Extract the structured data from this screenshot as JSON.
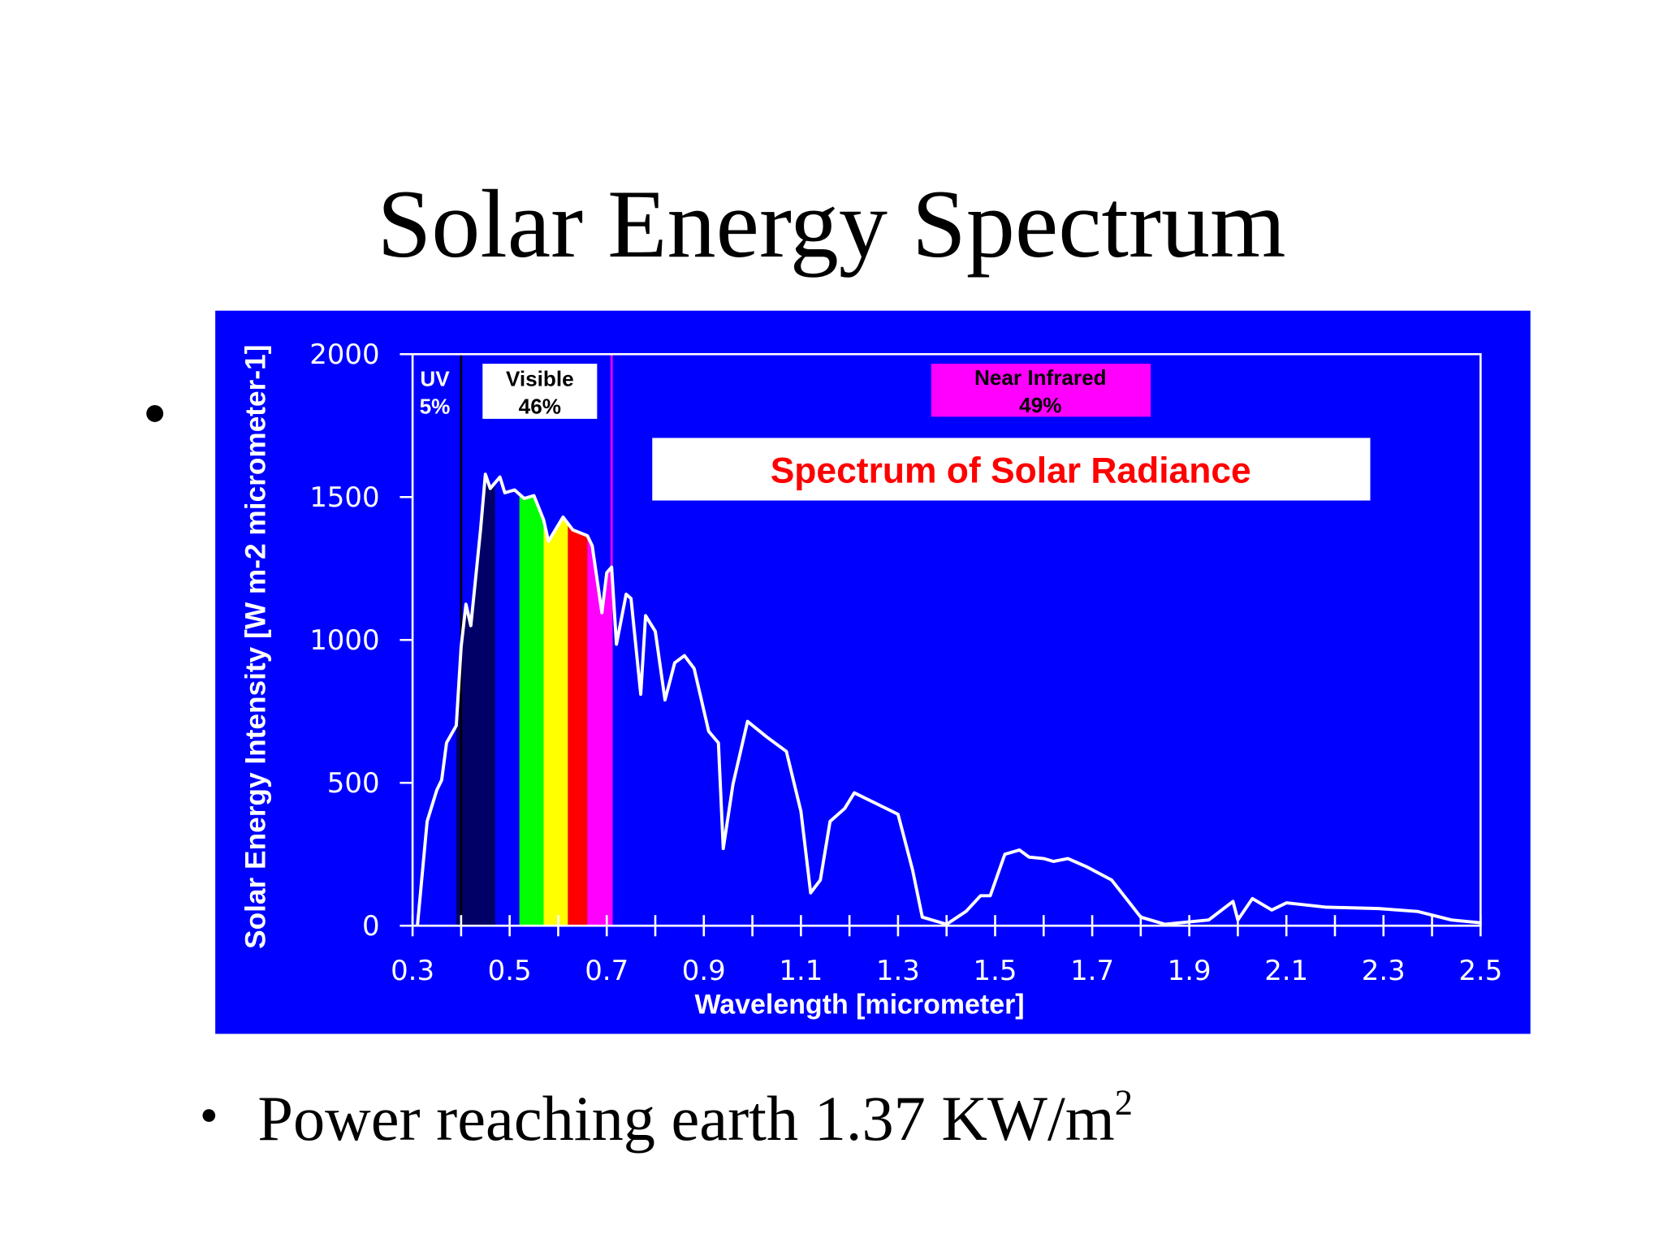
{
  "slide": {
    "title": "Solar Energy Spectrum",
    "bullet": {
      "text": "Power reaching earth 1.37 KW/m",
      "superscript": "2"
    }
  },
  "chart_data": {
    "type": "line",
    "title": "Spectrum of Solar Radiance",
    "x_label": "Wavelength [micrometer]",
    "y_label": "Solar Energy Intensity [W m-2 micrometer-1]",
    "x": [
      0.31,
      0.33,
      0.35,
      0.36,
      0.37,
      0.39,
      0.4,
      0.41,
      0.42,
      0.44,
      0.45,
      0.46,
      0.47,
      0.48,
      0.49,
      0.51,
      0.53,
      0.55,
      0.57,
      0.58,
      0.61,
      0.63,
      0.66,
      0.67,
      0.69,
      0.7,
      0.71,
      0.72,
      0.74,
      0.75,
      0.77,
      0.78,
      0.8,
      0.82,
      0.84,
      0.86,
      0.88,
      0.91,
      0.93,
      0.94,
      0.96,
      0.99,
      1.03,
      1.07,
      1.1,
      1.12,
      1.14,
      1.16,
      1.19,
      1.21,
      1.24,
      1.3,
      1.33,
      1.35,
      1.4,
      1.44,
      1.47,
      1.49,
      1.52,
      1.55,
      1.57,
      1.6,
      1.62,
      1.65,
      1.69,
      1.74,
      1.8,
      1.85,
      1.94,
      1.99,
      2.0,
      2.03,
      2.07,
      2.1,
      2.18,
      2.29,
      2.37,
      2.44,
      2.5
    ],
    "values": [
      0,
      365,
      475,
      510,
      640,
      700,
      975,
      1125,
      1050,
      1385,
      1580,
      1530,
      1550,
      1570,
      1515,
      1525,
      1495,
      1505,
      1420,
      1345,
      1430,
      1385,
      1365,
      1330,
      1095,
      1235,
      1255,
      985,
      1160,
      1145,
      810,
      1085,
      1030,
      790,
      920,
      945,
      900,
      680,
      640,
      270,
      495,
      715,
      660,
      610,
      400,
      115,
      160,
      365,
      410,
      465,
      440,
      390,
      195,
      30,
      5,
      50,
      105,
      105,
      250,
      265,
      240,
      235,
      225,
      235,
      205,
      160,
      30,
      5,
      20,
      85,
      20,
      95,
      55,
      80,
      65,
      60,
      50,
      20,
      10
    ],
    "color": "#ffffff",
    "xlim": [
      0.3,
      2.5
    ],
    "xticks": [
      0.3,
      0.5,
      0.7,
      0.9,
      1.1,
      1.3,
      1.5,
      1.7,
      1.9,
      2.1,
      2.3,
      2.5
    ],
    "minor_xticks": [
      0.4,
      0.6,
      0.8,
      1.0,
      1.2,
      1.4,
      1.6,
      1.8,
      2.0,
      2.2,
      2.4
    ],
    "ylim": [
      0,
      2000
    ],
    "yticks": [
      0,
      500,
      1000,
      1500,
      2000
    ],
    "bands": [
      {
        "start": 0.39,
        "end": 0.47,
        "color": "#000066"
      },
      {
        "start": 0.52,
        "end": 0.57,
        "color": "#00ff00"
      },
      {
        "start": 0.57,
        "end": 0.62,
        "color": "#ffff00"
      },
      {
        "start": 0.62,
        "end": 0.66,
        "color": "#ff0000"
      },
      {
        "start": 0.66,
        "end": 0.71,
        "color": "#ff00ff"
      }
    ],
    "dividers": [
      {
        "x": 0.4,
        "color": "#000000"
      },
      {
        "x": 0.71,
        "color": "#ff00ff"
      }
    ],
    "regions": [
      {
        "name": "UV",
        "share": "5%"
      },
      {
        "name": "Visible",
        "share": "46%"
      },
      {
        "name": "Near Infrared",
        "share": "49%"
      }
    ],
    "background": "#0000ff"
  }
}
